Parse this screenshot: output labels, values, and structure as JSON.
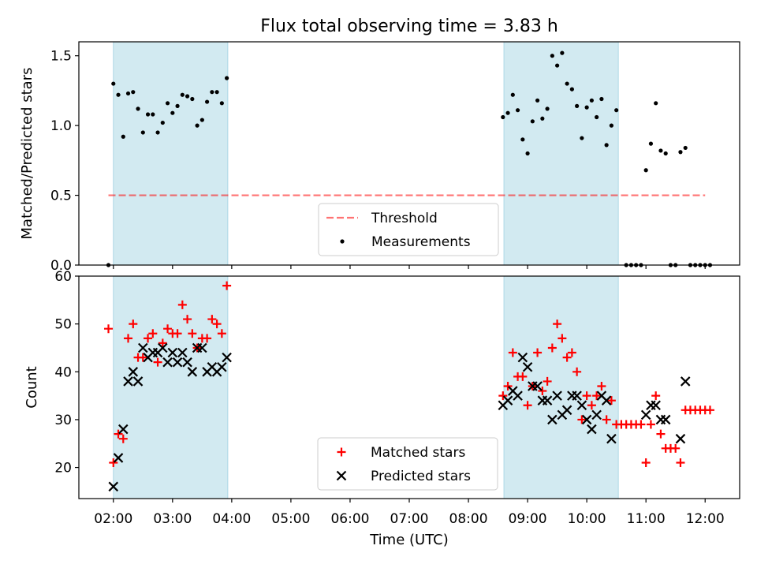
{
  "title": "Flux total observing time = 3.83 h",
  "colors": {
    "shade": "#add8e6",
    "threshold": "#ff0000",
    "measurement": "#000000",
    "matched": "#ff0000",
    "predicted": "#000000"
  },
  "chart_data": [
    {
      "type": "scatter",
      "ylabel": "Matched/Predicted stars",
      "ylim": [
        0,
        1.6
      ],
      "yticks": [
        0.0,
        0.5,
        1.0,
        1.5
      ],
      "ytick_labels": [
        "0.0",
        "0.5",
        "1.0",
        "1.5"
      ],
      "xlim": [
        "01:25",
        "12:35"
      ],
      "shaded_intervals": [
        [
          "02:00",
          "03:56"
        ],
        [
          "08:36",
          "10:32"
        ]
      ],
      "threshold": {
        "name": "Threshold",
        "value": 0.5,
        "x_range": [
          "01:55",
          "12:00"
        ],
        "style": "dashed"
      },
      "legend": {
        "placement": "lower-center",
        "entries": [
          "Threshold",
          "Measurements"
        ]
      },
      "series": [
        {
          "name": "Measurements",
          "points": [
            [
              "01:55",
              0.0
            ],
            [
              "02:00",
              1.3
            ],
            [
              "02:05",
              1.22
            ],
            [
              "02:10",
              0.92
            ],
            [
              "02:15",
              1.23
            ],
            [
              "02:20",
              1.24
            ],
            [
              "02:25",
              1.12
            ],
            [
              "02:30",
              0.95
            ],
            [
              "02:35",
              1.08
            ],
            [
              "02:40",
              1.08
            ],
            [
              "02:45",
              0.95
            ],
            [
              "02:50",
              1.02
            ],
            [
              "02:55",
              1.16
            ],
            [
              "03:00",
              1.09
            ],
            [
              "03:05",
              1.14
            ],
            [
              "03:10",
              1.22
            ],
            [
              "03:15",
              1.21
            ],
            [
              "03:20",
              1.19
            ],
            [
              "03:25",
              1.0
            ],
            [
              "03:30",
              1.04
            ],
            [
              "03:35",
              1.17
            ],
            [
              "03:40",
              1.24
            ],
            [
              "03:45",
              1.24
            ],
            [
              "03:50",
              1.16
            ],
            [
              "03:55",
              1.34
            ],
            [
              "08:35",
              1.06
            ],
            [
              "08:40",
              1.09
            ],
            [
              "08:45",
              1.22
            ],
            [
              "08:50",
              1.11
            ],
            [
              "08:55",
              0.9
            ],
            [
              "09:00",
              0.8
            ],
            [
              "09:05",
              1.03
            ],
            [
              "09:10",
              1.18
            ],
            [
              "09:15",
              1.05
            ],
            [
              "09:20",
              1.12
            ],
            [
              "09:25",
              1.5
            ],
            [
              "09:30",
              1.43
            ],
            [
              "09:35",
              1.52
            ],
            [
              "09:40",
              1.3
            ],
            [
              "09:45",
              1.26
            ],
            [
              "09:50",
              1.14
            ],
            [
              "09:55",
              0.91
            ],
            [
              "10:00",
              1.13
            ],
            [
              "10:05",
              1.18
            ],
            [
              "10:10",
              1.06
            ],
            [
              "10:15",
              1.19
            ],
            [
              "10:20",
              0.86
            ],
            [
              "10:25",
              1.0
            ],
            [
              "10:30",
              1.11
            ],
            [
              "10:40",
              0.0
            ],
            [
              "10:45",
              0.0
            ],
            [
              "10:50",
              0.0
            ],
            [
              "10:55",
              0.0
            ],
            [
              "11:00",
              0.68
            ],
            [
              "11:05",
              0.87
            ],
            [
              "11:10",
              1.16
            ],
            [
              "11:15",
              0.82
            ],
            [
              "11:20",
              0.8
            ],
            [
              "11:25",
              0.0
            ],
            [
              "11:30",
              0.0
            ],
            [
              "11:35",
              0.81
            ],
            [
              "11:40",
              0.84
            ],
            [
              "11:45",
              0.0
            ],
            [
              "11:50",
              0.0
            ],
            [
              "11:55",
              0.0
            ],
            [
              "12:00",
              0.0
            ],
            [
              "12:05",
              0.0
            ]
          ]
        }
      ]
    },
    {
      "type": "scatter",
      "ylabel": "Count",
      "xlabel": "Time (UTC)",
      "ylim": [
        13.5,
        60
      ],
      "yticks": [
        20,
        30,
        40,
        50,
        60
      ],
      "ytick_labels": [
        "20",
        "30",
        "40",
        "50",
        "60"
      ],
      "xlim": [
        "01:25",
        "12:35"
      ],
      "xticks": [
        "02:00",
        "03:00",
        "04:00",
        "05:00",
        "06:00",
        "07:00",
        "08:00",
        "09:00",
        "10:00",
        "11:00",
        "12:00"
      ],
      "xtick_labels": [
        "02:00",
        "03:00",
        "04:00",
        "05:00",
        "06:00",
        "07:00",
        "08:00",
        "09:00",
        "10:00",
        "11:00",
        "12:00"
      ],
      "shaded_intervals": [
        [
          "02:00",
          "03:56"
        ],
        [
          "08:36",
          "10:32"
        ]
      ],
      "legend": {
        "placement": "lower-center",
        "entries": [
          "Matched stars",
          "Predicted stars"
        ]
      },
      "series": [
        {
          "name": "Matched stars",
          "marker": "plus",
          "points": [
            [
              "01:55",
              49
            ],
            [
              "02:00",
              21
            ],
            [
              "02:05",
              27
            ],
            [
              "02:10",
              26
            ],
            [
              "02:15",
              47
            ],
            [
              "02:20",
              50
            ],
            [
              "02:25",
              43
            ],
            [
              "02:30",
              43
            ],
            [
              "02:35",
              47
            ],
            [
              "02:40",
              48
            ],
            [
              "02:45",
              42
            ],
            [
              "02:50",
              46
            ],
            [
              "02:55",
              49
            ],
            [
              "03:00",
              48
            ],
            [
              "03:05",
              48
            ],
            [
              "03:10",
              54
            ],
            [
              "03:15",
              51
            ],
            [
              "03:20",
              48
            ],
            [
              "03:25",
              45
            ],
            [
              "03:30",
              47
            ],
            [
              "03:35",
              47
            ],
            [
              "03:40",
              51
            ],
            [
              "03:45",
              50
            ],
            [
              "03:50",
              48
            ],
            [
              "03:55",
              58
            ],
            [
              "08:35",
              35
            ],
            [
              "08:40",
              37
            ],
            [
              "08:45",
              44
            ],
            [
              "08:50",
              39
            ],
            [
              "08:55",
              39
            ],
            [
              "09:00",
              33
            ],
            [
              "09:05",
              37
            ],
            [
              "09:10",
              44
            ],
            [
              "09:15",
              36
            ],
            [
              "09:20",
              38
            ],
            [
              "09:25",
              45
            ],
            [
              "09:30",
              50
            ],
            [
              "09:35",
              47
            ],
            [
              "09:40",
              43
            ],
            [
              "09:45",
              44
            ],
            [
              "09:50",
              40
            ],
            [
              "09:55",
              30
            ],
            [
              "10:00",
              35
            ],
            [
              "10:05",
              33
            ],
            [
              "10:10",
              35
            ],
            [
              "10:15",
              37
            ],
            [
              "10:20",
              30
            ],
            [
              "10:25",
              34
            ],
            [
              "10:30",
              29
            ],
            [
              "10:35",
              29
            ],
            [
              "10:40",
              29
            ],
            [
              "10:45",
              29
            ],
            [
              "10:50",
              29
            ],
            [
              "10:55",
              29
            ],
            [
              "11:00",
              21
            ],
            [
              "11:05",
              29
            ],
            [
              "11:10",
              35
            ],
            [
              "11:15",
              27
            ],
            [
              "11:20",
              24
            ],
            [
              "11:25",
              24
            ],
            [
              "11:30",
              24
            ],
            [
              "11:35",
              21
            ],
            [
              "11:40",
              32
            ],
            [
              "11:45",
              32
            ],
            [
              "11:50",
              32
            ],
            [
              "11:55",
              32
            ],
            [
              "12:00",
              32
            ],
            [
              "12:05",
              32
            ]
          ]
        },
        {
          "name": "Predicted stars",
          "marker": "x",
          "points": [
            [
              "02:00",
              16
            ],
            [
              "02:05",
              22
            ],
            [
              "02:10",
              28
            ],
            [
              "02:15",
              38
            ],
            [
              "02:20",
              40
            ],
            [
              "02:25",
              38
            ],
            [
              "02:30",
              45
            ],
            [
              "02:35",
              43
            ],
            [
              "02:40",
              44
            ],
            [
              "02:45",
              44
            ],
            [
              "02:50",
              45
            ],
            [
              "02:55",
              42
            ],
            [
              "03:00",
              44
            ],
            [
              "03:05",
              42
            ],
            [
              "03:10",
              44
            ],
            [
              "03:15",
              42
            ],
            [
              "03:20",
              40
            ],
            [
              "03:25",
              45
            ],
            [
              "03:30",
              45
            ],
            [
              "03:35",
              40
            ],
            [
              "03:40",
              41
            ],
            [
              "03:45",
              40
            ],
            [
              "03:50",
              41
            ],
            [
              "03:55",
              43
            ],
            [
              "08:35",
              33
            ],
            [
              "08:40",
              34
            ],
            [
              "08:45",
              36
            ],
            [
              "08:50",
              35
            ],
            [
              "08:55",
              43
            ],
            [
              "09:00",
              41
            ],
            [
              "09:05",
              37
            ],
            [
              "09:10",
              37
            ],
            [
              "09:15",
              34
            ],
            [
              "09:20",
              34
            ],
            [
              "09:25",
              30
            ],
            [
              "09:30",
              35
            ],
            [
              "09:35",
              31
            ],
            [
              "09:40",
              32
            ],
            [
              "09:45",
              35
            ],
            [
              "09:50",
              35
            ],
            [
              "09:55",
              33
            ],
            [
              "10:00",
              30
            ],
            [
              "10:05",
              28
            ],
            [
              "10:10",
              31
            ],
            [
              "10:15",
              35
            ],
            [
              "10:20",
              34
            ],
            [
              "10:25",
              26
            ],
            [
              "11:00",
              31
            ],
            [
              "11:05",
              33
            ],
            [
              "11:10",
              33
            ],
            [
              "11:15",
              30
            ],
            [
              "11:20",
              30
            ],
            [
              "11:35",
              26
            ],
            [
              "11:40",
              38
            ]
          ]
        }
      ]
    }
  ]
}
